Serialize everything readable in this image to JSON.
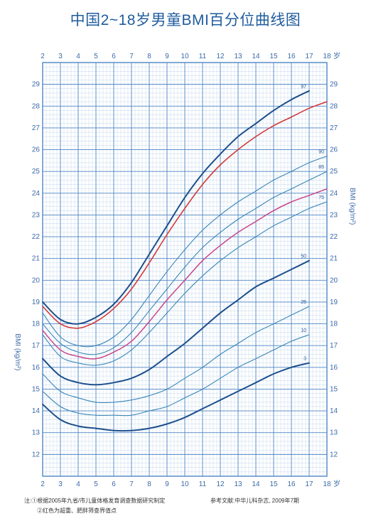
{
  "title": "中国2~18岁男童BMI百分位曲线图",
  "notes": {
    "prefix": "注:",
    "line1": "①根据2005年九省/市儿童体格发育调查数据研究制定",
    "line2": "②红色为超重、肥胖筛查界值点",
    "reference": "参考文献:中华儿科杂志, 2009年7期"
  },
  "colors": {
    "grid": "#4f86c6",
    "dark": "#1d4f8c",
    "mid": "#3a86b8",
    "red": "#d23a3a",
    "pink": "#c8468a"
  },
  "chart_data": {
    "type": "line",
    "title": "中国2~18岁男童BMI百分位曲线图",
    "xlabel": "岁",
    "ylabel": "BMI (kg/m²)",
    "xlim": [
      2,
      18
    ],
    "ylim": [
      11,
      30
    ],
    "x_ticks": [
      "2",
      "3",
      "4",
      "5",
      "6",
      "7",
      "8",
      "9",
      "10",
      "11",
      "12",
      "13",
      "14",
      "15",
      "16",
      "17",
      "18"
    ],
    "y_ticks": [
      "12",
      "13",
      "14",
      "15",
      "16",
      "17",
      "18",
      "19",
      "20",
      "21",
      "22",
      "23",
      "24",
      "25",
      "26",
      "27",
      "28",
      "29"
    ],
    "x": [
      2,
      3,
      4,
      5,
      6,
      7,
      8,
      9,
      10,
      11,
      12,
      13,
      14,
      15,
      16,
      17,
      18
    ],
    "series": [
      {
        "name": "97",
        "label": "97",
        "color": "dark",
        "width": 2.0,
        "values": [
          19.0,
          18.2,
          18.0,
          18.3,
          18.9,
          19.9,
          21.2,
          22.5,
          23.8,
          24.9,
          25.8,
          26.6,
          27.2,
          27.8,
          28.3,
          28.7,
          null
        ]
      },
      {
        "name": "red",
        "label": "",
        "color": "red",
        "width": 1.6,
        "values": [
          18.8,
          18.0,
          17.8,
          18.1,
          18.7,
          19.6,
          20.8,
          22.1,
          23.3,
          24.4,
          25.3,
          26.0,
          26.6,
          27.1,
          27.5,
          27.9,
          28.2
        ]
      },
      {
        "name": "90",
        "label": "90",
        "color": "mid",
        "width": 1.1,
        "values": [
          18.5,
          17.4,
          17.0,
          17.0,
          17.4,
          18.2,
          19.3,
          20.4,
          21.4,
          22.3,
          23.0,
          23.6,
          24.1,
          24.6,
          25.0,
          25.4,
          25.7
        ]
      },
      {
        "name": "85",
        "label": "85",
        "color": "mid",
        "width": 1.1,
        "values": [
          18.0,
          17.1,
          16.7,
          16.6,
          16.9,
          17.6,
          18.6,
          19.6,
          20.6,
          21.5,
          22.2,
          22.8,
          23.3,
          23.8,
          24.2,
          24.6,
          25.0
        ]
      },
      {
        "name": "pink",
        "label": "",
        "color": "pink",
        "width": 1.5,
        "values": [
          17.7,
          16.8,
          16.5,
          16.4,
          16.7,
          17.2,
          18.1,
          19.1,
          20.0,
          20.9,
          21.6,
          22.2,
          22.7,
          23.2,
          23.6,
          23.9,
          24.2
        ]
      },
      {
        "name": "75",
        "label": "75",
        "color": "mid",
        "width": 1.1,
        "values": [
          17.5,
          16.5,
          16.2,
          16.1,
          16.3,
          16.8,
          17.6,
          18.5,
          19.4,
          20.2,
          20.9,
          21.5,
          22.0,
          22.5,
          22.9,
          23.3,
          23.6
        ]
      },
      {
        "name": "50",
        "label": "50",
        "color": "dark",
        "width": 2.0,
        "values": [
          16.4,
          15.6,
          15.3,
          15.2,
          15.3,
          15.5,
          15.9,
          16.5,
          17.1,
          17.8,
          18.5,
          19.1,
          19.7,
          20.1,
          20.5,
          20.9,
          null
        ]
      },
      {
        "name": "25",
        "label": "25",
        "color": "mid",
        "width": 1.1,
        "values": [
          15.7,
          14.9,
          14.6,
          14.4,
          14.4,
          14.5,
          14.7,
          15.0,
          15.5,
          16.0,
          16.6,
          17.1,
          17.6,
          18.0,
          18.4,
          18.8,
          null
        ]
      },
      {
        "name": "10",
        "label": "10",
        "color": "mid",
        "width": 1.1,
        "values": [
          14.9,
          14.2,
          13.9,
          13.8,
          13.8,
          13.8,
          14.0,
          14.2,
          14.6,
          15.0,
          15.5,
          16.0,
          16.4,
          16.8,
          17.2,
          17.5,
          null
        ]
      },
      {
        "name": "3",
        "label": "3",
        "color": "dark",
        "width": 2.0,
        "values": [
          14.3,
          13.6,
          13.3,
          13.2,
          13.1,
          13.1,
          13.2,
          13.4,
          13.7,
          14.1,
          14.5,
          14.9,
          15.3,
          15.7,
          16.0,
          16.2,
          null
        ]
      }
    ]
  }
}
